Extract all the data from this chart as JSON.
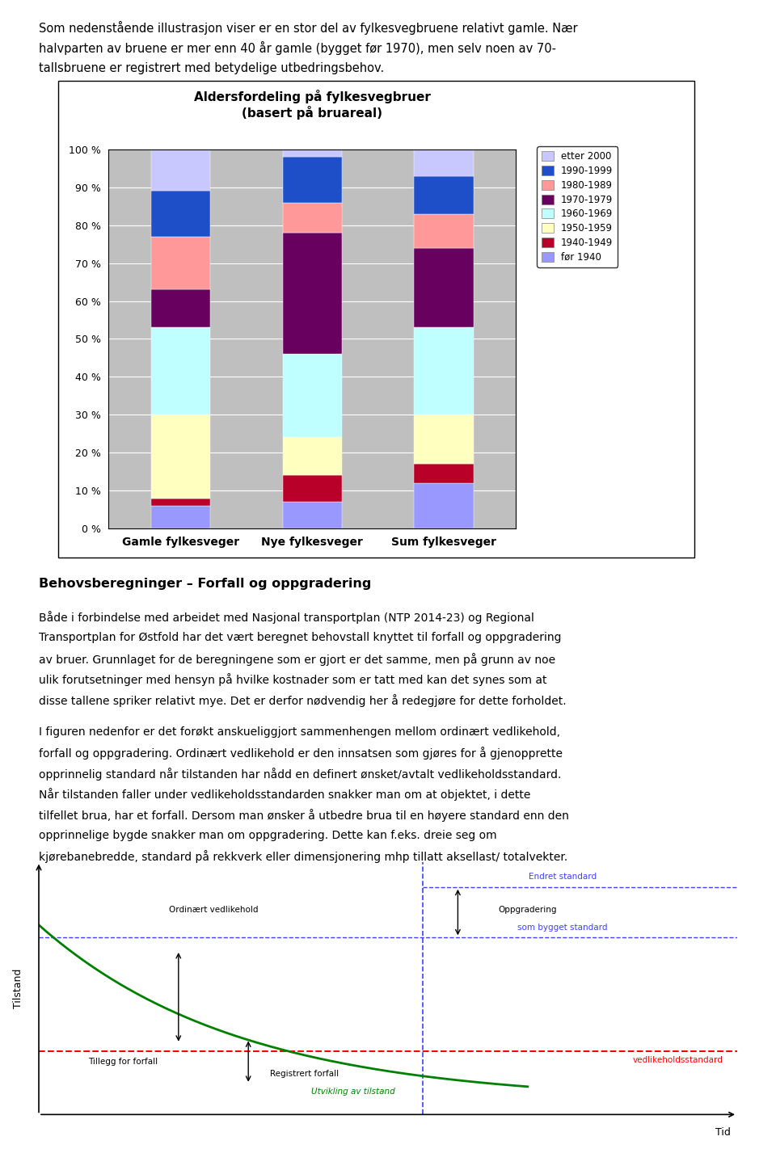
{
  "title_line1": "Aldersfordeling på fylkesvegbruer",
  "title_line2": "(basert på bruareal)",
  "categories": [
    "Gamle fylkesveger",
    "Nye fylkesveger",
    "Sum fylkesveger"
  ],
  "series_labels": [
    "etter 2000",
    "1990-1999",
    "1980-1989",
    "1970-1979",
    "1960-1969",
    "1950-1959",
    "1940-1949",
    "før 1940"
  ],
  "colors_top_to_bottom": [
    "#C8C8FF",
    "#1E4EC8",
    "#FF9898",
    "#680060",
    "#C0FFFF",
    "#FFFFC0",
    "#B80028",
    "#9898FF"
  ],
  "data": {
    "etter 2000": [
      11,
      2,
      7
    ],
    "1990-1999": [
      12,
      12,
      10
    ],
    "1980-1989": [
      14,
      8,
      9
    ],
    "1970-1979": [
      10,
      32,
      21
    ],
    "1960-1969": [
      23,
      22,
      23
    ],
    "1950-1959": [
      22,
      10,
      13
    ],
    "1940-1949": [
      2,
      7,
      5
    ],
    "før 1940": [
      6,
      7,
      12
    ]
  },
  "plot_bg_color": "#BFBFBF",
  "grid_color": "#FFFFFF",
  "bar_width": 0.45,
  "intro_text_line1": "Som nedenstående illustrasjon viser er en stor del av fylkesvegbruene relativt gamle. Nær",
  "intro_text_line2": "halvparten av bruene er mer enn 40 år gamle (bygget før 1970), men selv noen av 70-",
  "intro_text_line3": "tallsbruene er registrert med betydelige utbedringsbehov.",
  "section_header": "Behovsberegninger – Forfall og oppgradering",
  "body1_lines": [
    "Både i forbindelse med arbeidet med Nasjonal transportplan (NTP 2014-23) og Regional",
    "Transportplan for Østfold har det vært beregnet behovstall knyttet til forfall og oppgradering",
    "av bruer. Grunnlaget for de beregningene som er gjort er det samme, men på grunn av noe",
    "ulik forutsetninger med hensyn på hvilke kostnader som er tatt med kan det synes som at",
    "disse tallene spriker relativt mye. Det er derfor nødvendig her å redegjøre for dette forholdet."
  ],
  "body2_lines": [
    "I figuren nedenfor er det forøkt anskueliggjort sammenhengen mellom ordinært vedlikehold,",
    "forfall og oppgradering. Ordinært vedlikehold er den innsatsen som gjøres for å gjenopprette",
    "opprinnelig standard når tilstanden har nådd en definert ønsket/avtalt vedlikeholdsstandard.",
    "Når tilstanden faller under vedlikeholdsstandarden snakker man om at objektet, i dette",
    "tilfellet brua, har et forfall. Dersom man ønsker å utbedre brua til en høyere standard enn den",
    "opprinnelige bygde snakker man om oppgradering. Dette kan f.eks. dreie seg om",
    "kjørebanebredde, standard på rekkverk eller dimensjonering mhp tillatt aksellast/ totalvekter."
  ],
  "fig_width": 9.6,
  "fig_height": 14.22,
  "dpi": 100
}
